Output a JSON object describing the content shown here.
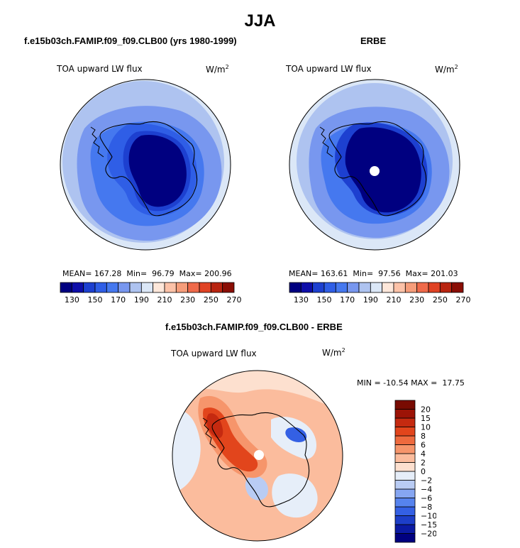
{
  "title": "JJA",
  "colors": {
    "scale14": [
      "#000080",
      "#0e0ea9",
      "#1d40d0",
      "#2f5ee6",
      "#4578ef",
      "#7897ef",
      "#aec3f0",
      "#dbe7f7",
      "#fde7da",
      "#fcc2a8",
      "#f69d7a",
      "#ef6a4a",
      "#e04324",
      "#b82410",
      "#8a0e05"
    ],
    "diff15": [
      "#000080",
      "#0b1aa3",
      "#1d3ec8",
      "#3460e4",
      "#5683ee",
      "#86a6f2",
      "#b9ccf4",
      "#e6eef9",
      "#fde0cf",
      "#fbbc9d",
      "#f6956b",
      "#ee6a3e",
      "#e2451c",
      "#c52a10",
      "#9c1306",
      "#780b02"
    ],
    "land_line": "#000000"
  },
  "panels": [
    {
      "case_title": "f.e15b03ch.FAMIP.f09_f09.CLB00 (yrs 1980-1999)",
      "variable": "TOA upward LW flux",
      "units_base": "W/m",
      "units_exp": "2",
      "mean_label": "MEAN=",
      "mean": "167.28",
      "min_label": "Min=",
      "min": "96.79",
      "max_label": "Max=",
      "max": "200.96",
      "pole_hole": false
    },
    {
      "case_title": "ERBE",
      "variable": "TOA upward LW flux",
      "units_base": "W/m",
      "units_exp": "2",
      "mean_label": "MEAN=",
      "mean": "163.61",
      "min_label": "Min=",
      "min": "97.56",
      "max_label": "Max=",
      "max": "201.03",
      "pole_hole": true
    }
  ],
  "diff_panel": {
    "case_title": "f.e15b03ch.FAMIP.f09_f09.CLB00 - ERBE",
    "variable": "TOA upward LW flux",
    "units_base": "W/m",
    "units_exp": "2",
    "minmax_text": "MIN = -10.54 MAX =  17.75"
  },
  "chart_data": [
    {
      "type": "heatmap",
      "projection": "south-polar-stereographic",
      "title": "f.e15b03ch.FAMIP.f09_f09.CLB00 (yrs 1980-1999)",
      "variable": "TOA upward LW flux",
      "units": "W/m2",
      "colorbar_ticks": [
        130,
        150,
        170,
        190,
        210,
        230,
        250,
        270
      ],
      "contour_levels": [
        130,
        140,
        150,
        160,
        170,
        180,
        190,
        200,
        210,
        220,
        230,
        240,
        250,
        260,
        270
      ],
      "stats": {
        "mean": 167.28,
        "min": 96.79,
        "max": 200.96
      }
    },
    {
      "type": "heatmap",
      "projection": "south-polar-stereographic",
      "title": "ERBE",
      "variable": "TOA upward LW flux",
      "units": "W/m2",
      "colorbar_ticks": [
        130,
        150,
        170,
        190,
        210,
        230,
        250,
        270
      ],
      "contour_levels": [
        130,
        140,
        150,
        160,
        170,
        180,
        190,
        200,
        210,
        220,
        230,
        240,
        250,
        260,
        270
      ],
      "stats": {
        "mean": 163.61,
        "min": 97.56,
        "max": 201.03
      }
    },
    {
      "type": "heatmap",
      "projection": "south-polar-stereographic",
      "title": "f.e15b03ch.FAMIP.f09_f09.CLB00 - ERBE",
      "variable": "TOA upward LW flux",
      "units": "W/m2",
      "colorbar_ticks": [
        -20,
        -15,
        -10,
        -8,
        -6,
        -4,
        -2,
        0,
        2,
        4,
        6,
        8,
        10,
        15,
        20
      ],
      "stats": {
        "min": -10.54,
        "max": 17.75
      }
    }
  ]
}
